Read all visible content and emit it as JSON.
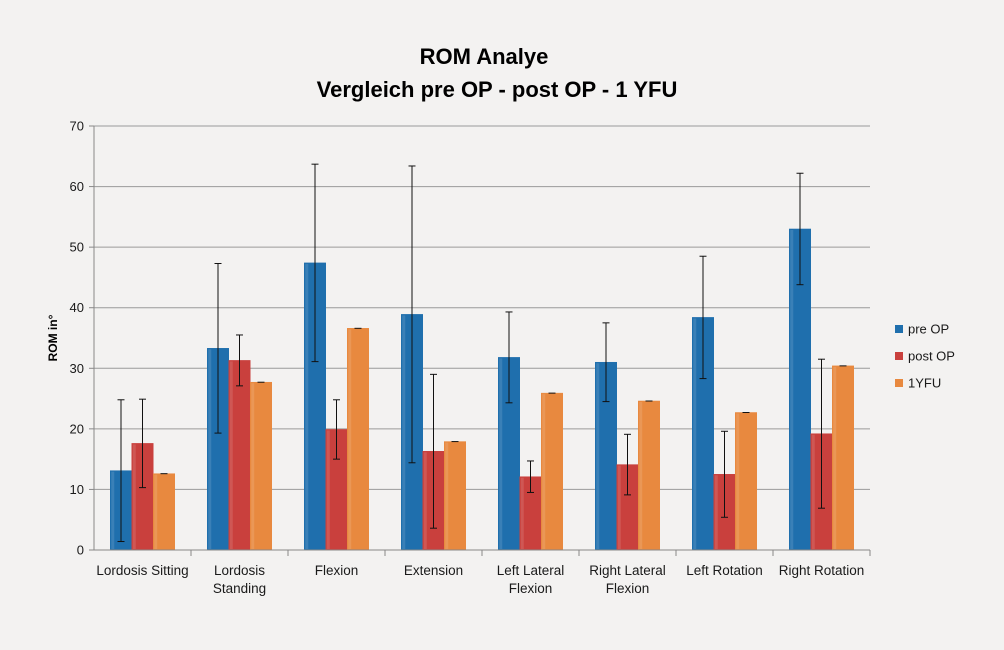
{
  "chart_data": {
    "type": "bar",
    "title": [
      "ROM Analye",
      "Vergleich pre OP - post OP - 1 YFU"
    ],
    "xlabel": "",
    "ylabel": "ROM in°",
    "ylim": [
      0,
      70
    ],
    "yticks": [
      0,
      10,
      20,
      30,
      40,
      50,
      60,
      70
    ],
    "grid": true,
    "legend_position": "right",
    "categories": [
      [
        "Lordosis Sitting"
      ],
      [
        "Lordosis",
        "Standing"
      ],
      [
        "Flexion"
      ],
      [
        "Extension"
      ],
      [
        "Left Lateral",
        "Flexion"
      ],
      [
        "Right Lateral",
        "Flexion"
      ],
      [
        "Left Rotation"
      ],
      [
        "Right Rotation"
      ]
    ],
    "series": [
      {
        "name": "pre OP",
        "color": "#1f6fad",
        "values": [
          13.1,
          33.3,
          47.4,
          38.9,
          31.8,
          31.0,
          38.4,
          53.0
        ],
        "error": [
          11.7,
          14.0,
          16.3,
          24.5,
          7.5,
          6.5,
          10.1,
          9.2
        ]
      },
      {
        "name": "post OP",
        "color": "#c9403d",
        "values": [
          17.6,
          31.3,
          19.9,
          16.3,
          12.1,
          14.1,
          12.5,
          19.2
        ],
        "error": [
          7.3,
          4.2,
          4.9,
          12.7,
          2.6,
          5.0,
          7.1,
          12.3
        ]
      },
      {
        "name": "1YFU",
        "color": "#e8893f",
        "values": [
          12.6,
          27.7,
          36.6,
          17.9,
          25.9,
          24.6,
          22.7,
          30.4
        ],
        "error": [
          0,
          0,
          0,
          0,
          0,
          0,
          0,
          0
        ]
      }
    ]
  }
}
